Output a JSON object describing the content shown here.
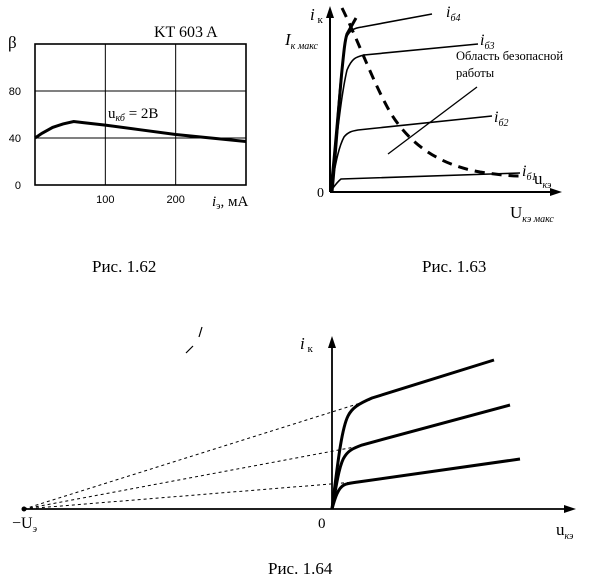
{
  "fig_162": {
    "caption": "Рис. 1.62",
    "device_label": "KT 603 A",
    "y_axis_label": "β",
    "x_axis_label_sym": "i",
    "x_axis_label_sub": "э",
    "x_axis_label_unit": ", мА",
    "curve_label_sym": "u",
    "curve_label_sub": "кб",
    "curve_label_val": " = 2B"
  },
  "fig_163": {
    "caption": "Рис. 1.63",
    "y_axis_sym": "i",
    "y_axis_sub": " к",
    "ik_max_sym": "I",
    "ik_max_sub": "к макс",
    "x_axis_sym": "u",
    "x_axis_sub": "кэ",
    "uke_max_sym": "U",
    "uke_max_sub": "кэ макс",
    "origin": "0",
    "safe_area_line1": "Область безопасной",
    "safe_area_line2": "работы",
    "curve_labels": [
      {
        "sym": "i",
        "sub": "б4"
      },
      {
        "sym": "i",
        "sub": "б3"
      },
      {
        "sym": "i",
        "sub": "б2"
      },
      {
        "sym": "i",
        "sub": "б1"
      }
    ]
  },
  "fig_164": {
    "caption": "Рис. 1.64",
    "y_axis_sym": "i",
    "y_axis_sub": " к",
    "x_axis_sym": "u",
    "x_axis_sub": "кэ",
    "origin": "0",
    "neg_u_sym": "−U",
    "neg_u_sub": "э"
  },
  "chart_data": [
    {
      "type": "line",
      "title": "KT 603 A",
      "ylabel": "β",
      "xlabel": "iэ, мА",
      "xlim": [
        0,
        300
      ],
      "ylim": [
        0,
        120
      ],
      "xticks": [
        100,
        200
      ],
      "yticks": [
        0,
        40,
        80
      ],
      "grid": true,
      "series": [
        {
          "name": "uкб = 2B",
          "x": [
            0,
            10,
            25,
            40,
            55,
            70,
            100,
            150,
            200,
            250,
            300
          ],
          "y": [
            40,
            44,
            49,
            52,
            54,
            53,
            51,
            47,
            43,
            40,
            37
          ]
        }
      ]
    }
  ]
}
